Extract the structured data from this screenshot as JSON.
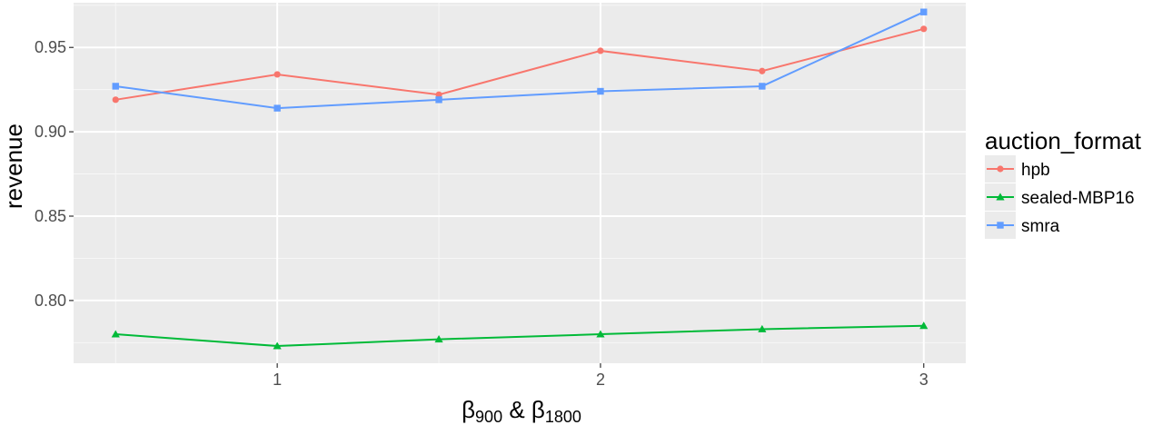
{
  "chart_data": {
    "type": "line",
    "ylabel": "revenue",
    "xlabel_parts": {
      "beta1": "β",
      "sub1": "900",
      "amp": " & ",
      "beta2": "β",
      "sub2": "1800"
    },
    "x_ticks": [
      1,
      2,
      3
    ],
    "x_tick_labels": [
      "1",
      "2",
      "3"
    ],
    "y_ticks": [
      0.8,
      0.85,
      0.9,
      0.95
    ],
    "y_tick_labels": [
      "0.80",
      "0.85",
      "0.90",
      "0.95"
    ],
    "xlim": [
      0.37,
      3.13
    ],
    "ylim": [
      0.7628,
      0.9765
    ],
    "legend": {
      "title": "auction_format",
      "placement": "right"
    },
    "background_color": "#ebebeb",
    "grid": true,
    "series": [
      {
        "name": "hpb",
        "color": "#f8766d",
        "marker": "circle",
        "x": [
          0.5,
          1,
          1.5,
          2,
          2.5,
          3
        ],
        "values": [
          0.919,
          0.934,
          0.922,
          0.948,
          0.936,
          0.961
        ]
      },
      {
        "name": "sealed-MBP16",
        "color": "#00ba38",
        "marker": "triangle",
        "x": [
          0.5,
          1,
          1.5,
          2,
          2.5,
          3
        ],
        "values": [
          0.78,
          0.773,
          0.777,
          0.78,
          0.783,
          0.785
        ]
      },
      {
        "name": "smra",
        "color": "#619cff",
        "marker": "square",
        "x": [
          0.5,
          1,
          1.5,
          2,
          2.5,
          3
        ],
        "values": [
          0.927,
          0.914,
          0.919,
          0.924,
          0.927,
          0.971
        ]
      }
    ]
  }
}
